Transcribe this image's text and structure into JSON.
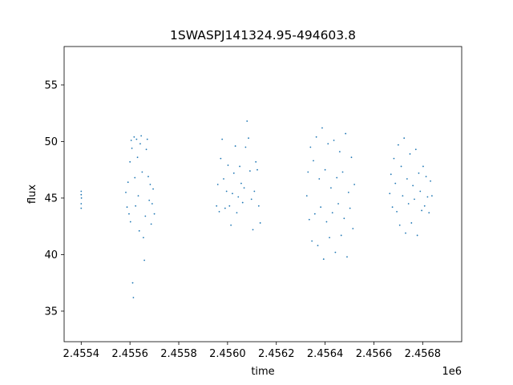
{
  "chart_data": {
    "type": "scatter",
    "title": "1SWASPJ141324.95-494603.8",
    "xlabel": "time",
    "ylabel": "flux",
    "x_offset_label": "1e6",
    "xlim": [
      2455330,
      2456960
    ],
    "ylim": [
      32.3,
      58.4
    ],
    "x_ticks": [
      2455400,
      2455600,
      2455800,
      2456000,
      2456200,
      2456400,
      2456600,
      2456800
    ],
    "x_tick_labels": [
      "2.4554",
      "2.4556",
      "2.4558",
      "2.4560",
      "2.4562",
      "2.4564",
      "2.4566",
      "2.4568"
    ],
    "y_ticks": [
      35,
      40,
      45,
      50,
      55
    ],
    "y_tick_labels": [
      "35",
      "40",
      "45",
      "50",
      "55"
    ],
    "grid": false,
    "legend": "none",
    "marker_color": "#1f77b4",
    "series": [
      {
        "values_note_free": true,
        "points": [
          [
            2455400,
            45.3
          ],
          [
            2455400,
            44.5
          ],
          [
            2455400,
            45.6
          ],
          [
            2455400,
            44.1
          ],
          [
            2455401,
            45.0
          ],
          [
            2455583,
            45.5
          ],
          [
            2455588,
            44.2
          ],
          [
            2455592,
            46.4
          ],
          [
            2455596,
            43.6
          ],
          [
            2455600,
            48.2
          ],
          [
            2455602,
            42.9
          ],
          [
            2455605,
            50.1
          ],
          [
            2455608,
            49.4
          ],
          [
            2455611,
            37.5
          ],
          [
            2455614,
            36.2
          ],
          [
            2455617,
            50.4
          ],
          [
            2455620,
            46.8
          ],
          [
            2455623,
            44.3
          ],
          [
            2455627,
            50.2
          ],
          [
            2455631,
            48.6
          ],
          [
            2455634,
            45.2
          ],
          [
            2455638,
            42.1
          ],
          [
            2455642,
            49.8
          ],
          [
            2455646,
            50.5
          ],
          [
            2455650,
            47.3
          ],
          [
            2455655,
            41.5
          ],
          [
            2455659,
            39.5
          ],
          [
            2455663,
            43.4
          ],
          [
            2455667,
            49.3
          ],
          [
            2455671,
            50.2
          ],
          [
            2455675,
            46.9
          ],
          [
            2455679,
            44.8
          ],
          [
            2455683,
            46.2
          ],
          [
            2455687,
            42.7
          ],
          [
            2455691,
            44.5
          ],
          [
            2455695,
            45.8
          ],
          [
            2455700,
            43.6
          ],
          [
            2455955,
            44.3
          ],
          [
            2455960,
            46.2
          ],
          [
            2455966,
            43.8
          ],
          [
            2455972,
            48.5
          ],
          [
            2455978,
            50.2
          ],
          [
            2455984,
            46.7
          ],
          [
            2455990,
            44.1
          ],
          [
            2455996,
            45.6
          ],
          [
            2456002,
            47.9
          ],
          [
            2456008,
            44.3
          ],
          [
            2456014,
            42.6
          ],
          [
            2456020,
            45.4
          ],
          [
            2456026,
            47.2
          ],
          [
            2456032,
            49.6
          ],
          [
            2456038,
            43.7
          ],
          [
            2456044,
            45.1
          ],
          [
            2456050,
            47.8
          ],
          [
            2456056,
            46.3
          ],
          [
            2456062,
            44.6
          ],
          [
            2456068,
            45.9
          ],
          [
            2456074,
            49.5
          ],
          [
            2456080,
            51.8
          ],
          [
            2456086,
            50.3
          ],
          [
            2456092,
            47.4
          ],
          [
            2456098,
            44.9
          ],
          [
            2456104,
            42.2
          ],
          [
            2456110,
            45.6
          ],
          [
            2456116,
            48.2
          ],
          [
            2456122,
            47.5
          ],
          [
            2456128,
            44.3
          ],
          [
            2456134,
            42.8
          ],
          [
            2456325,
            45.2
          ],
          [
            2456330,
            47.3
          ],
          [
            2456335,
            43.1
          ],
          [
            2456340,
            49.5
          ],
          [
            2456346,
            41.2
          ],
          [
            2456352,
            48.3
          ],
          [
            2456358,
            43.6
          ],
          [
            2456364,
            50.4
          ],
          [
            2456370,
            40.8
          ],
          [
            2456376,
            46.7
          ],
          [
            2456382,
            44.2
          ],
          [
            2456388,
            51.2
          ],
          [
            2456394,
            39.6
          ],
          [
            2456400,
            47.5
          ],
          [
            2456406,
            42.9
          ],
          [
            2456412,
            49.8
          ],
          [
            2456418,
            41.5
          ],
          [
            2456424,
            45.9
          ],
          [
            2456430,
            43.7
          ],
          [
            2456436,
            50.1
          ],
          [
            2456442,
            40.2
          ],
          [
            2456448,
            46.8
          ],
          [
            2456454,
            44.5
          ],
          [
            2456460,
            49.1
          ],
          [
            2456466,
            41.7
          ],
          [
            2456472,
            47.3
          ],
          [
            2456478,
            43.2
          ],
          [
            2456484,
            50.7
          ],
          [
            2456490,
            39.8
          ],
          [
            2456496,
            45.5
          ],
          [
            2456502,
            44.1
          ],
          [
            2456508,
            48.6
          ],
          [
            2456514,
            42.3
          ],
          [
            2456520,
            46.2
          ],
          [
            2456665,
            45.4
          ],
          [
            2456670,
            47.1
          ],
          [
            2456676,
            44.2
          ],
          [
            2456682,
            48.5
          ],
          [
            2456688,
            46.3
          ],
          [
            2456694,
            43.8
          ],
          [
            2456700,
            49.7
          ],
          [
            2456706,
            42.6
          ],
          [
            2456712,
            47.8
          ],
          [
            2456718,
            45.2
          ],
          [
            2456724,
            50.3
          ],
          [
            2456730,
            41.9
          ],
          [
            2456736,
            46.7
          ],
          [
            2456742,
            44.5
          ],
          [
            2456748,
            48.9
          ],
          [
            2456754,
            42.8
          ],
          [
            2456760,
            46.1
          ],
          [
            2456766,
            44.9
          ],
          [
            2456772,
            49.3
          ],
          [
            2456778,
            41.7
          ],
          [
            2456784,
            47.2
          ],
          [
            2456790,
            45.6
          ],
          [
            2456796,
            43.9
          ],
          [
            2456802,
            47.8
          ],
          [
            2456808,
            44.3
          ],
          [
            2456814,
            46.9
          ],
          [
            2456820,
            45.1
          ],
          [
            2456826,
            43.7
          ],
          [
            2456832,
            46.5
          ],
          [
            2456838,
            45.2
          ]
        ]
      }
    ]
  }
}
